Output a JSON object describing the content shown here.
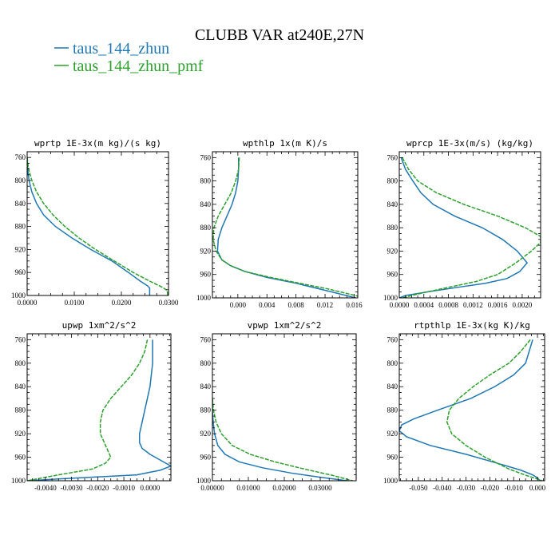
{
  "figure": {
    "title": "CLUBB VAR at240E,27N",
    "legend": [
      {
        "label": "taus_144_zhun",
        "color": "#1f77b4"
      },
      {
        "label": "taus_144_zhun_pmf",
        "color": "#2ca02c"
      }
    ]
  },
  "chart_data": [
    {
      "type": "line",
      "title": "wprtp  1E-3x(m kg)/(s kg)",
      "xlim": [
        0,
        0.03
      ],
      "ylim": [
        1000,
        750
      ],
      "xticks": [
        0,
        0.01,
        0.02,
        0.03
      ],
      "xtick_labels": [
        "0.0000",
        "0.0100",
        "0.0200",
        "0.0300"
      ],
      "yticks": [
        760,
        800,
        840,
        880,
        920,
        960,
        1000
      ],
      "series": [
        {
          "name": "taus_144_zhun",
          "color": "#1f77b4",
          "x": [
            0,
            0.0001,
            0.0004,
            0.001,
            0.002,
            0.0035,
            0.006,
            0.0095,
            0.0135,
            0.018,
            0.0215,
            0.024,
            0.0255,
            0.026,
            0.026,
            0.026
          ],
          "y": [
            760,
            780,
            800,
            820,
            840,
            860,
            880,
            900,
            920,
            940,
            960,
            975,
            983,
            987,
            993,
            1000
          ]
        },
        {
          "name": "taus_144_zhun_pmf",
          "color": "#2ca02c",
          "x": [
            0,
            0.0003,
            0.001,
            0.002,
            0.0035,
            0.0055,
            0.008,
            0.011,
            0.0145,
            0.0185,
            0.0225,
            0.026,
            0.0285,
            0.0295,
            0.0298,
            0.0298
          ],
          "y": [
            760,
            780,
            800,
            820,
            840,
            860,
            880,
            900,
            920,
            940,
            960,
            975,
            985,
            990,
            995,
            1000
          ]
        }
      ]
    },
    {
      "type": "line",
      "title": "wpthlp  1x(m K)/s",
      "xlim": [
        -0.0035,
        0.0165
      ],
      "ylim": [
        1000,
        750
      ],
      "xticks": [
        0,
        0.004,
        0.008,
        0.012,
        0.016
      ],
      "xtick_labels": [
        "0.000",
        "0.004",
        "0.008",
        "0.012",
        "0.016"
      ],
      "yticks": [
        760,
        800,
        840,
        880,
        920,
        960,
        1000
      ],
      "series": [
        {
          "name": "taus_144_zhun",
          "color": "#1f77b4",
          "x": [
            0.0001,
            0.0001,
            0,
            -0.0003,
            -0.0008,
            -0.0015,
            -0.0022,
            -0.0027,
            -0.0028,
            -0.0022,
            -0.001,
            0.001,
            0.004,
            0.008,
            0.012,
            0.0162
          ],
          "y": [
            760,
            780,
            800,
            820,
            840,
            860,
            880,
            900,
            920,
            935,
            945,
            955,
            965,
            975,
            987,
            1000
          ]
        },
        {
          "name": "taus_144_zhun_pmf",
          "color": "#2ca02c",
          "x": [
            0.0002,
            0.0001,
            -0.0003,
            -0.0009,
            -0.0018,
            -0.0027,
            -0.0033,
            -0.0034,
            -0.003,
            -0.0022,
            -0.001,
            0.001,
            0.0045,
            0.0085,
            0.0125,
            0.0165
          ],
          "y": [
            760,
            780,
            800,
            820,
            840,
            860,
            880,
            900,
            920,
            935,
            945,
            955,
            965,
            975,
            985,
            997
          ]
        }
      ]
    },
    {
      "type": "line",
      "title": "wprcp  1E-3x(m/s) (kg/kg)",
      "xlim": [
        0,
        0.0023
      ],
      "ylim": [
        1000,
        750
      ],
      "xticks": [
        0,
        0.0004,
        0.0008,
        0.0012,
        0.0016,
        0.002
      ],
      "xtick_labels": [
        "0.0000",
        "0.0004",
        "0.0008",
        "0.0012",
        "0.0016",
        "0.0020"
      ],
      "yticks": [
        760,
        800,
        840,
        880,
        920,
        960,
        1000
      ],
      "series": [
        {
          "name": "taus_144_zhun",
          "color": "#1f77b4",
          "x": [
            3e-05,
            0.0001,
            0.00022,
            0.00035,
            0.00055,
            0.0009,
            0.00135,
            0.00168,
            0.00192,
            0.00208,
            0.00196,
            0.00175,
            0.0014,
            0.00095,
            0.0005,
            0.0001,
            0
          ],
          "y": [
            760,
            780,
            800,
            820,
            840,
            860,
            880,
            900,
            920,
            940,
            955,
            967,
            975,
            982,
            989,
            996,
            1000
          ]
        },
        {
          "name": "taus_144_zhun_pmf",
          "color": "#2ca02c",
          "x": [
            5e-05,
            0.00015,
            0.0003,
            0.0006,
            0.00105,
            0.0016,
            0.00205,
            0.0023,
            0.0023,
            0.00215,
            0.0019,
            0.0016,
            0.00125,
            0.0008,
            0.0004,
            5e-05
          ],
          "y": [
            760,
            780,
            800,
            820,
            840,
            860,
            880,
            895,
            905,
            920,
            940,
            960,
            972,
            982,
            991,
            1000
          ]
        }
      ]
    },
    {
      "type": "line",
      "title": "upwp  1xm^2/s^2",
      "xlim": [
        -0.0047,
        0.0008
      ],
      "ylim": [
        1000,
        750
      ],
      "xticks": [
        -0.004,
        -0.003,
        -0.002,
        -0.001,
        0
      ],
      "xtick_labels": [
        "-0.0040",
        "-0.0030",
        "-0.0020",
        "-0.0010",
        "0.0000"
      ],
      "yticks": [
        760,
        800,
        840,
        880,
        920,
        960,
        1000
      ],
      "series": [
        {
          "name": "taus_144_zhun",
          "color": "#1f77b4",
          "x": [
            0.0001,
            0.0001,
            0,
            -0.0001,
            -0.0002,
            -0.0003,
            -0.0004,
            -0.0004,
            -0.0003,
            0,
            0.0004,
            0.0008,
            0.0004,
            -0.0005,
            -0.0035,
            -0.0047
          ],
          "y": [
            760,
            800,
            840,
            860,
            880,
            900,
            920,
            935,
            945,
            955,
            965,
            975,
            982,
            990,
            997,
            1000
          ]
        },
        {
          "name": "taus_144_zhun_pmf",
          "color": "#2ca02c",
          "x": [
            -0.0001,
            -0.0002,
            -0.0004,
            -0.0007,
            -0.0011,
            -0.0015,
            -0.0018,
            -0.0019,
            -0.0019,
            -0.0017,
            -0.0015,
            -0.0017,
            -0.0022,
            -0.0035,
            -0.0047
          ],
          "y": [
            760,
            780,
            800,
            820,
            840,
            860,
            880,
            900,
            920,
            940,
            960,
            970,
            980,
            990,
            1000
          ]
        }
      ]
    },
    {
      "type": "line",
      "title": "vpwp  1xm^2/s^2",
      "xlim": [
        0,
        0.04
      ],
      "ylim": [
        1000,
        750
      ],
      "xticks": [
        0,
        0.01,
        0.02,
        0.03
      ],
      "xtick_labels": [
        "0.00000",
        "0.01000",
        "0.02000",
        "0.03000"
      ],
      "yticks": [
        760,
        800,
        840,
        880,
        920,
        960,
        1000
      ],
      "series": [
        {
          "name": "taus_144_zhun",
          "color": "#1f77b4",
          "x": [
            0,
            0,
            0.0002,
            0.0006,
            0.0015,
            0.0035,
            0.0075,
            0.014,
            0.022,
            0.03,
            0.0375
          ],
          "y": [
            860,
            880,
            900,
            920,
            940,
            955,
            968,
            978,
            987,
            994,
            1000
          ]
        },
        {
          "name": "taus_144_zhun_pmf",
          "color": "#2ca02c",
          "x": [
            0,
            0.0003,
            0.001,
            0.0025,
            0.0055,
            0.0105,
            0.0175,
            0.0255,
            0.0335,
            0.039
          ],
          "y": [
            860,
            880,
            900,
            920,
            940,
            955,
            968,
            980,
            991,
            1000
          ]
        }
      ]
    },
    {
      "type": "line",
      "title": "rtpthlp  1E-3x(kg K)/kg",
      "xlim": [
        -0.058,
        0.003
      ],
      "ylim": [
        1000,
        750
      ],
      "xticks": [
        -0.05,
        -0.04,
        -0.03,
        -0.02,
        -0.01,
        0
      ],
      "xtick_labels": [
        "-0.050",
        "-0.040",
        "-0.030",
        "-0.020",
        "-0.010",
        "0.000"
      ],
      "yticks": [
        760,
        800,
        840,
        880,
        920,
        960,
        1000
      ],
      "series": [
        {
          "name": "taus_144_zhun",
          "color": "#1f77b4",
          "x": [
            -0.002,
            -0.005,
            -0.01,
            -0.018,
            -0.028,
            -0.042,
            -0.052,
            -0.057,
            -0.058,
            -0.055,
            -0.045,
            -0.03,
            -0.017,
            -0.007,
            -0.002,
            0,
            0.001
          ],
          "y": [
            760,
            800,
            820,
            840,
            860,
            880,
            895,
            905,
            915,
            925,
            940,
            955,
            970,
            982,
            990,
            995,
            1000
          ]
        },
        {
          "name": "taus_144_zhun_pmf",
          "color": "#2ca02c",
          "x": [
            -0.003,
            -0.007,
            -0.012,
            -0.02,
            -0.027,
            -0.033,
            -0.037,
            -0.038,
            -0.036,
            -0.03,
            -0.022,
            -0.012,
            -0.004,
            0,
            0.002
          ],
          "y": [
            760,
            780,
            800,
            820,
            840,
            860,
            880,
            900,
            920,
            940,
            960,
            980,
            992,
            997,
            1000
          ]
        }
      ]
    }
  ]
}
